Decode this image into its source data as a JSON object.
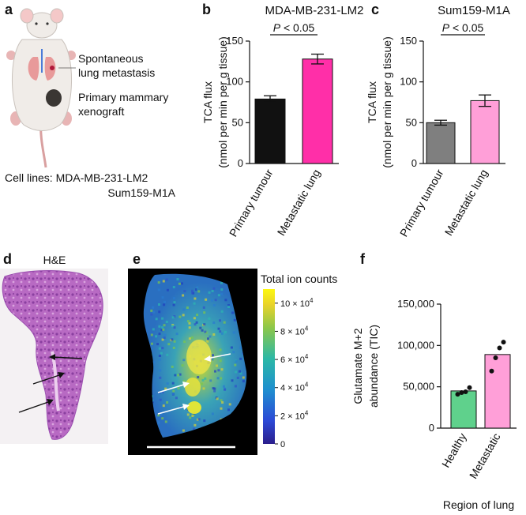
{
  "panels": {
    "a": {
      "letter": "a",
      "labels": {
        "metastasis_line1": "Spontaneous",
        "metastasis_line2": "lung metastasis",
        "primary_line1": "Primary mammary",
        "primary_line2": "xenograft"
      },
      "cell_lines_label": "Cell lines: MDA-MB-231-LM2",
      "cell_lines_second": "Sum159-M1A"
    },
    "b": {
      "letter": "b"
    },
    "c": {
      "letter": "c"
    },
    "d": {
      "letter": "d",
      "title": "H&E"
    },
    "e": {
      "letter": "e",
      "colorbar_title": "Total ion counts",
      "colorbar_ticks": [
        {
          "value": 100000,
          "mantissa": "10 × 10",
          "exp": "4"
        },
        {
          "value": 80000,
          "mantissa": "8 × 10",
          "exp": "4"
        },
        {
          "value": 60000,
          "mantissa": "6 × 10",
          "exp": "4"
        },
        {
          "value": 40000,
          "mantissa": "4 × 10",
          "exp": "4"
        },
        {
          "value": 20000,
          "mantissa": "2 × 10",
          "exp": "4"
        },
        {
          "value": 0,
          "mantissa": "0",
          "exp": ""
        }
      ],
      "colorbar_range": [
        0,
        110000
      ]
    },
    "f": {
      "letter": "f"
    }
  },
  "chart_data": [
    {
      "id": "b",
      "type": "bar",
      "title": "MDA-MB-231-LM2",
      "categories": [
        "Primary tumour",
        "Metastatic lung"
      ],
      "values": [
        79,
        128
      ],
      "errors": [
        4,
        6
      ],
      "colors": [
        "#111111",
        "#ff2fa8"
      ],
      "ylabel_line1": "TCA flux",
      "ylabel_line2": "(nmol per min per g tissue)",
      "ylim": [
        0,
        150
      ],
      "yticks": [
        0,
        50,
        100,
        150
      ],
      "significance_prefix": "P",
      "significance_suffix": " < 0.05"
    },
    {
      "id": "c",
      "type": "bar",
      "title": "Sum159-M1A",
      "categories": [
        "Primary tumour",
        "Metastatic lung"
      ],
      "values": [
        50,
        77
      ],
      "errors": [
        3,
        7
      ],
      "colors": [
        "#7f7f7f",
        "#ff9fd8"
      ],
      "ylabel_line1": "TCA flux",
      "ylabel_line2": "(nmol per min per g tissue)",
      "ylim": [
        0,
        150
      ],
      "yticks": [
        0,
        50,
        100,
        150
      ],
      "significance_prefix": "P",
      "significance_suffix": " < 0.05"
    },
    {
      "id": "f",
      "type": "bar",
      "title": "",
      "categories": [
        "Healthy",
        "Metastatic"
      ],
      "values": [
        45000,
        89000
      ],
      "points": [
        [
          41000,
          43000,
          44000,
          49000
        ],
        [
          69000,
          85000,
          97000,
          104000
        ]
      ],
      "colors": [
        "#5fd18c",
        "#ff9fd8"
      ],
      "ylabel_line1": "Glutamate M+2",
      "ylabel_line2": "abundance (TIC)",
      "xlabel": "Region of lung",
      "ylim": [
        0,
        150000
      ],
      "yticks": [
        0,
        50000,
        100000,
        150000
      ],
      "ytick_labels": [
        "0",
        "50,000",
        "100,000",
        "150,000"
      ]
    }
  ]
}
